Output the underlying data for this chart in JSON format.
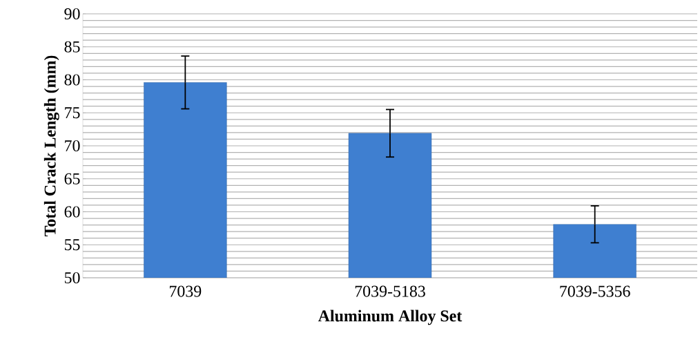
{
  "chart_data": {
    "type": "bar",
    "xlabel": "Aluminum Alloy Set",
    "ylabel": "Total Crack Length (mm)",
    "categories": [
      "7039",
      "7039-5183",
      "7039-5356"
    ],
    "values": [
      79.6,
      71.9,
      58.1
    ],
    "errors": [
      4.0,
      3.6,
      2.8
    ],
    "color": "#3f7fd0",
    "ylim": [
      50,
      90
    ],
    "yticks": [
      50,
      55,
      60,
      65,
      70,
      75,
      80,
      85,
      90
    ],
    "grid": "y"
  }
}
